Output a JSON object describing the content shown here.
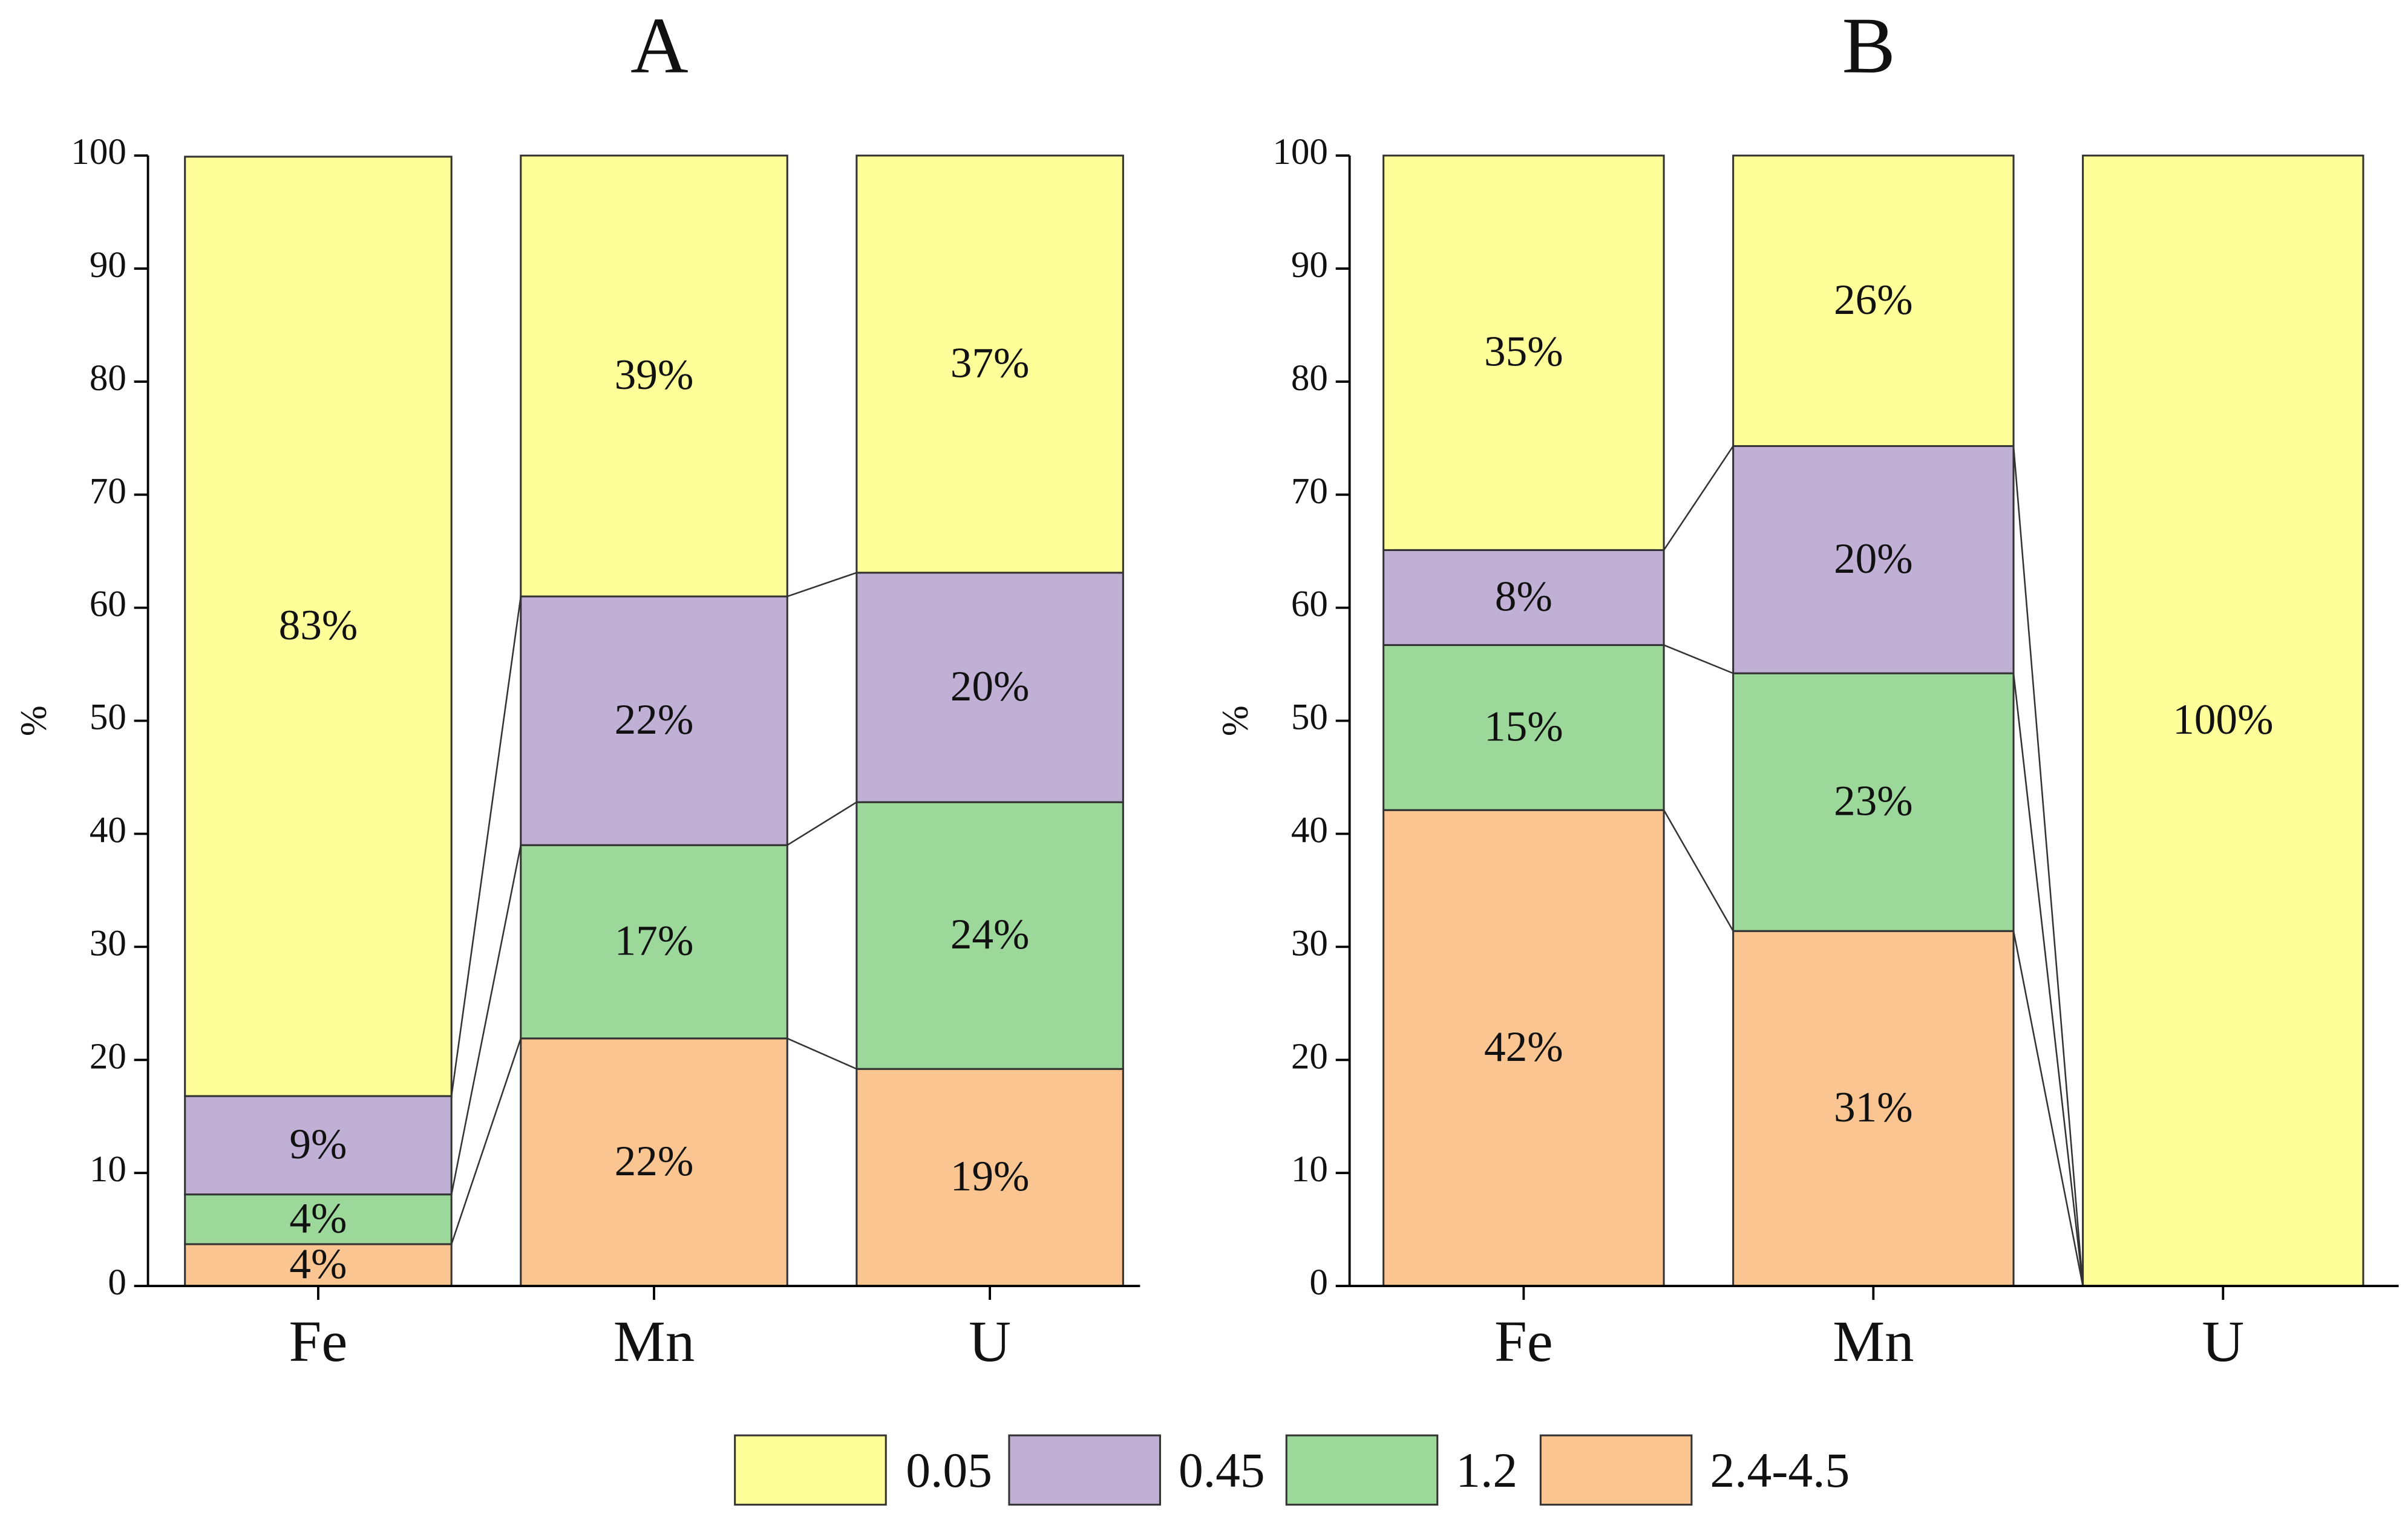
{
  "chart_data": [
    {
      "type": "bar",
      "stacked": true,
      "title": "A",
      "ylabel": "%",
      "categories": [
        "Fe",
        "Mn",
        "U"
      ],
      "series": [
        {
          "name": "2.4-4.5",
          "color": "#fac591",
          "values": [
            3.7,
            21.9,
            19.2
          ],
          "value_labels": [
            "4%",
            "22%",
            "19%"
          ]
        },
        {
          "name": "1.2",
          "color": "#9dd89b",
          "values": [
            4.4,
            17.1,
            23.6
          ],
          "value_labels": [
            "4%",
            "17%",
            "24%"
          ]
        },
        {
          "name": "0.45",
          "color": "#c1b0d6",
          "values": [
            8.7,
            22.0,
            20.3
          ],
          "value_labels": [
            "9%",
            "22%",
            "20%"
          ]
        },
        {
          "name": "0.05",
          "color": "#ffff99",
          "values": [
            83.1,
            39.0,
            36.9
          ],
          "value_labels": [
            "83%",
            "39%",
            "37%"
          ]
        }
      ],
      "ylim": [
        0,
        100
      ],
      "yticks": [
        0,
        10,
        20,
        30,
        40,
        50,
        60,
        70,
        80,
        90,
        100
      ]
    },
    {
      "type": "bar",
      "stacked": true,
      "title": "B",
      "ylabel": "%",
      "categories": [
        "Fe",
        "Mn",
        "U"
      ],
      "series": [
        {
          "color": "#fac591",
          "values": [
            42.1,
            31.4,
            0
          ],
          "value_labels": [
            "42%",
            "31%",
            null
          ]
        },
        {
          "color": "#9dd89b",
          "values": [
            14.6,
            22.8,
            0
          ],
          "value_labels": [
            "15%",
            "23%",
            null
          ]
        },
        {
          "color": "#c1b0d6",
          "values": [
            8.4,
            20.1,
            0
          ],
          "value_labels": [
            "8%",
            "20%",
            null
          ]
        },
        {
          "color": "#ffff99",
          "values": [
            34.9,
            25.7,
            100
          ],
          "value_labels": [
            "35%",
            "26%",
            "100%"
          ]
        }
      ],
      "ylim": [
        0,
        100
      ],
      "yticks": [
        0,
        10,
        20,
        30,
        40,
        50,
        60,
        70,
        80,
        90,
        100
      ]
    }
  ]
}
